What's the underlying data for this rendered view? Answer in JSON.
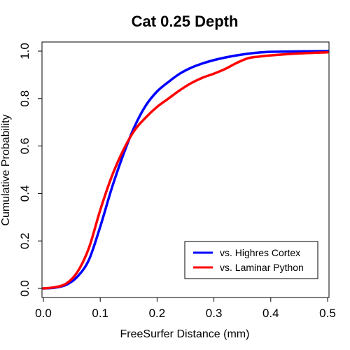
{
  "chart_data": {
    "type": "line",
    "title": "Cat 0.25 Depth",
    "xlabel": "FreeSurfer Distance (mm)",
    "ylabel": "Cumulative Probability",
    "xlim": [
      0,
      0.5
    ],
    "ylim": [
      0,
      1.0
    ],
    "xticks": [
      "0.0",
      "0.1",
      "0.2",
      "0.3",
      "0.4",
      "0.5"
    ],
    "yticks": [
      "0.0",
      "0.2",
      "0.4",
      "0.6",
      "0.8",
      "1.0"
    ],
    "grid": false,
    "legend_position": "bottom-right",
    "series": [
      {
        "name": "vs. Highres Cortex",
        "color": "#0000ff",
        "x": [
          0,
          0.02,
          0.04,
          0.06,
          0.08,
          0.1,
          0.12,
          0.14,
          0.16,
          0.18,
          0.2,
          0.22,
          0.24,
          0.26,
          0.28,
          0.3,
          0.32,
          0.34,
          0.36,
          0.38,
          0.4,
          0.45,
          0.5
        ],
        "y": [
          0.0,
          0.003,
          0.015,
          0.05,
          0.12,
          0.26,
          0.42,
          0.56,
          0.68,
          0.77,
          0.83,
          0.87,
          0.905,
          0.93,
          0.948,
          0.962,
          0.973,
          0.982,
          0.989,
          0.994,
          0.997,
          0.999,
          1.0
        ]
      },
      {
        "name": "vs. Laminar Python",
        "color": "#ff0000",
        "x": [
          0,
          0.02,
          0.04,
          0.06,
          0.08,
          0.1,
          0.12,
          0.14,
          0.16,
          0.18,
          0.2,
          0.22,
          0.24,
          0.26,
          0.28,
          0.3,
          0.32,
          0.34,
          0.36,
          0.38,
          0.4,
          0.45,
          0.5
        ],
        "y": [
          0.0,
          0.005,
          0.02,
          0.07,
          0.17,
          0.33,
          0.47,
          0.58,
          0.665,
          0.72,
          0.765,
          0.8,
          0.835,
          0.865,
          0.888,
          0.905,
          0.925,
          0.95,
          0.97,
          0.977,
          0.982,
          0.99,
          0.995
        ]
      }
    ]
  }
}
